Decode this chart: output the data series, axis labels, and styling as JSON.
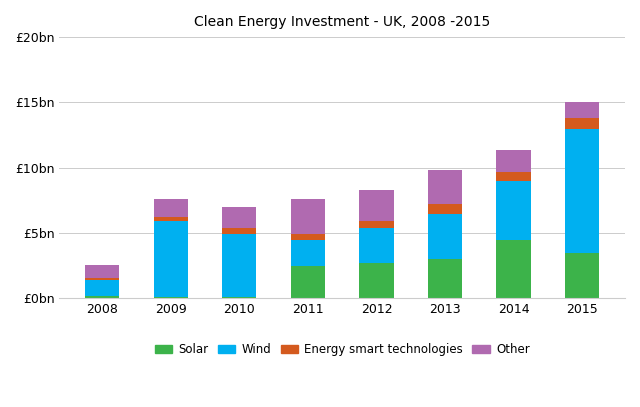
{
  "years": [
    "2008",
    "2009",
    "2010",
    "2011",
    "2012",
    "2013",
    "2014",
    "2015"
  ],
  "solar": [
    0.2,
    0.1,
    0.1,
    2.5,
    2.7,
    3.0,
    4.5,
    3.5
  ],
  "wind": [
    1.2,
    5.8,
    4.8,
    2.0,
    2.7,
    3.5,
    4.5,
    9.5
  ],
  "energy_smart": [
    0.2,
    0.3,
    0.5,
    0.4,
    0.5,
    0.7,
    0.7,
    0.8
  ],
  "other": [
    1.0,
    1.4,
    1.6,
    2.7,
    2.4,
    2.6,
    1.7,
    1.2
  ],
  "colors": {
    "solar": "#3cb34a",
    "wind": "#00b0f0",
    "energy_smart": "#d45a1e",
    "other": "#b06ab0"
  },
  "title": "Clean Energy Investment - UK, 2008 -2015",
  "yticks": [
    0,
    5,
    10,
    15,
    20
  ],
  "ytick_labels": [
    "£0bn",
    "£5bn",
    "£10bn",
    "£15bn",
    "£20bn"
  ],
  "ylim": [
    0,
    20
  ],
  "legend_labels": [
    "Solar",
    "Wind",
    "Energy smart technologies",
    "Other"
  ],
  "background_color": "#ffffff",
  "title_fontsize": 10,
  "tick_fontsize": 9,
  "legend_fontsize": 8.5
}
